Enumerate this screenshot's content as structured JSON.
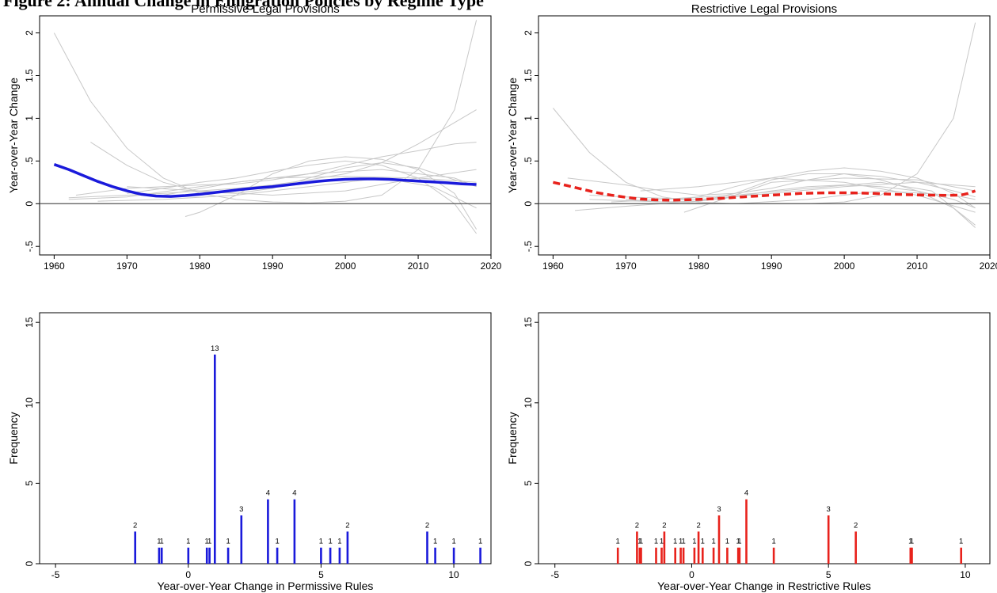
{
  "figure_title": "Figure 2: Annual Change in Emigration Policies by Regime Type",
  "chart_data": [
    {
      "id": "permissive-trend",
      "type": "line",
      "title": "Permissive Legal Provisions",
      "xlabel": "",
      "ylabel": "Year-over-Year Change",
      "xlim": [
        1958,
        2020
      ],
      "ylim": [
        -0.6,
        2.2
      ],
      "xticks": [
        1960,
        1970,
        1980,
        1990,
        2000,
        2010,
        2020
      ],
      "yticks": [
        -0.5,
        0,
        0.5,
        1,
        1.5,
        2
      ],
      "ytick_labels": [
        "-.5",
        "0",
        ".5",
        "1",
        "1.5",
        "2"
      ],
      "grid": false,
      "reference_line": 0,
      "main_color": "#1a1adb",
      "main_style": "solid",
      "main_series": {
        "x": [
          1960,
          1962,
          1964,
          1966,
          1968,
          1970,
          1972,
          1974,
          1976,
          1978,
          1980,
          1982,
          1984,
          1986,
          1988,
          1990,
          1992,
          1994,
          1996,
          1998,
          2000,
          2002,
          2004,
          2006,
          2008,
          2010,
          2012,
          2014,
          2016,
          2018
        ],
        "y": [
          0.46,
          0.4,
          0.33,
          0.26,
          0.2,
          0.15,
          0.11,
          0.09,
          0.085,
          0.095,
          0.11,
          0.13,
          0.15,
          0.17,
          0.185,
          0.2,
          0.22,
          0.24,
          0.26,
          0.275,
          0.285,
          0.29,
          0.29,
          0.285,
          0.275,
          0.265,
          0.255,
          0.245,
          0.232,
          0.225
        ]
      },
      "thin_series": [
        {
          "x": [
            1960,
            1965,
            1970,
            1975,
            1980,
            1985,
            1990,
            1995,
            2000,
            2005,
            2010,
            2015,
            2018
          ],
          "y": [
            2.0,
            1.2,
            0.65,
            0.3,
            0.12,
            0.05,
            0.02,
            0.01,
            0.03,
            0.1,
            0.4,
            1.1,
            2.15
          ]
        },
        {
          "x": [
            1965,
            1970,
            1975,
            1980,
            1985,
            1990,
            1995,
            2000,
            2005,
            2010,
            2015,
            2018
          ],
          "y": [
            0.72,
            0.45,
            0.25,
            0.14,
            0.12,
            0.18,
            0.3,
            0.42,
            0.48,
            0.42,
            0.28,
            0.2
          ]
        },
        {
          "x": [
            1962,
            1970,
            1975,
            1980,
            1985,
            1990,
            1995,
            2000,
            2005,
            2010,
            2015,
            2018
          ],
          "y": [
            0.07,
            0.1,
            0.12,
            0.15,
            0.18,
            0.22,
            0.28,
            0.35,
            0.48,
            0.7,
            0.95,
            1.1
          ]
        },
        {
          "x": [
            1963,
            1970,
            1975,
            1980,
            1985,
            1990,
            1995,
            2000,
            2005,
            2010,
            2015,
            2018
          ],
          "y": [
            0.1,
            0.18,
            0.2,
            0.22,
            0.23,
            0.28,
            0.35,
            0.45,
            0.55,
            0.62,
            0.7,
            0.72
          ]
        },
        {
          "x": [
            1978,
            1980,
            1985,
            1990,
            1995,
            2000,
            2005,
            2010,
            2015,
            2018
          ],
          "y": [
            -0.15,
            -0.1,
            0.1,
            0.35,
            0.5,
            0.55,
            0.52,
            0.4,
            0.12,
            -0.3
          ]
        },
        {
          "x": [
            1970,
            1975,
            1980,
            1985,
            1990,
            1995,
            2000,
            2005,
            2010,
            2015,
            2018
          ],
          "y": [
            0.12,
            0.18,
            0.25,
            0.3,
            0.38,
            0.45,
            0.5,
            0.45,
            0.3,
            0.0,
            -0.35
          ]
        },
        {
          "x": [
            1962,
            1970,
            1980,
            1990,
            2000,
            2010,
            2018
          ],
          "y": [
            0.05,
            0.08,
            0.2,
            0.3,
            0.32,
            0.3,
            0.25
          ]
        },
        {
          "x": [
            1966,
            1975,
            1985,
            1995,
            2005,
            2012,
            2018
          ],
          "y": [
            0.03,
            0.05,
            0.1,
            0.2,
            0.3,
            0.2,
            -0.05
          ]
        },
        {
          "x": [
            1970,
            1980,
            1990,
            2000,
            2010,
            2018
          ],
          "y": [
            0.2,
            0.15,
            0.1,
            0.15,
            0.3,
            0.4
          ]
        },
        {
          "x": [
            1975,
            1985,
            1995,
            2005,
            2015,
            2018
          ],
          "y": [
            0.1,
            0.25,
            0.35,
            0.4,
            0.3,
            0.2
          ]
        }
      ]
    },
    {
      "id": "restrictive-trend",
      "type": "line",
      "title": "Restrictive Legal Provisions",
      "xlabel": "",
      "ylabel": "Year-over-Year Change",
      "xlim": [
        1958,
        2020
      ],
      "ylim": [
        -0.6,
        2.2
      ],
      "xticks": [
        1960,
        1970,
        1980,
        1990,
        2000,
        2010,
        2020
      ],
      "yticks": [
        -0.5,
        0,
        0.5,
        1,
        1.5,
        2
      ],
      "ytick_labels": [
        "-.5",
        "0",
        ".5",
        "1",
        "1.5",
        "2"
      ],
      "grid": false,
      "reference_line": 0,
      "main_color": "#e8221c",
      "main_style": "dashed",
      "main_series": {
        "x": [
          1960,
          1962,
          1964,
          1966,
          1968,
          1970,
          1972,
          1974,
          1976,
          1978,
          1980,
          1982,
          1984,
          1986,
          1988,
          1990,
          1992,
          1994,
          1996,
          1998,
          2000,
          2002,
          2004,
          2006,
          2008,
          2010,
          2012,
          2014,
          2016,
          2017,
          2018
        ],
        "y": [
          0.25,
          0.21,
          0.17,
          0.13,
          0.1,
          0.075,
          0.055,
          0.045,
          0.042,
          0.045,
          0.05,
          0.058,
          0.068,
          0.08,
          0.09,
          0.1,
          0.11,
          0.12,
          0.125,
          0.128,
          0.128,
          0.125,
          0.12,
          0.113,
          0.107,
          0.103,
          0.1,
          0.098,
          0.1,
          0.12,
          0.15
        ]
      },
      "thin_series": [
        {
          "x": [
            1960,
            1965,
            1970,
            1975,
            1980,
            1985,
            1990,
            1995,
            2000,
            2005,
            2010,
            2015,
            2018
          ],
          "y": [
            1.12,
            0.6,
            0.25,
            0.08,
            0.02,
            0.0,
            0.0,
            0.0,
            0.02,
            0.1,
            0.35,
            1.0,
            2.12
          ]
        },
        {
          "x": [
            1962,
            1970,
            1975,
            1980,
            1985,
            1990,
            1995,
            2000,
            2005,
            2010,
            2015,
            2018
          ],
          "y": [
            0.3,
            0.22,
            0.15,
            0.1,
            0.12,
            0.18,
            0.28,
            0.35,
            0.32,
            0.25,
            0.15,
            0.08
          ]
        },
        {
          "x": [
            1963,
            1970,
            1975,
            1980,
            1985,
            1990,
            1995,
            2000,
            2005,
            2010,
            2015,
            2018
          ],
          "y": [
            -0.08,
            -0.03,
            0.0,
            0.03,
            0.08,
            0.15,
            0.2,
            0.22,
            0.2,
            0.15,
            0.05,
            -0.05
          ]
        },
        {
          "x": [
            1970,
            1975,
            1980,
            1985,
            1990,
            1995,
            2000,
            2005,
            2010,
            2015,
            2018
          ],
          "y": [
            0.05,
            0.02,
            0.03,
            0.12,
            0.28,
            0.35,
            0.35,
            0.28,
            0.15,
            -0.05,
            -0.28
          ]
        },
        {
          "x": [
            1975,
            1980,
            1985,
            1990,
            1995,
            2000,
            2005,
            2010,
            2015,
            2018
          ],
          "y": [
            0.05,
            0.08,
            0.2,
            0.3,
            0.38,
            0.42,
            0.38,
            0.3,
            0.12,
            -0.05
          ]
        },
        {
          "x": [
            1965,
            1970,
            1980,
            1990,
            2000,
            2010,
            2018
          ],
          "y": [
            0.1,
            0.08,
            0.05,
            0.12,
            0.2,
            0.25,
            0.2
          ]
        },
        {
          "x": [
            1968,
            1975,
            1985,
            1995,
            2005,
            2012,
            2018
          ],
          "y": [
            0.02,
            0.05,
            0.1,
            0.18,
            0.25,
            0.15,
            -0.25
          ]
        },
        {
          "x": [
            1978,
            1985,
            1990,
            2000,
            2010,
            2018
          ],
          "y": [
            -0.1,
            0.1,
            0.25,
            0.3,
            0.28,
            0.15
          ]
        },
        {
          "x": [
            1972,
            1980,
            1990,
            2000,
            2010,
            2018
          ],
          "y": [
            0.15,
            0.2,
            0.3,
            0.25,
            0.1,
            -0.1
          ]
        },
        {
          "x": [
            1965,
            1975,
            1985,
            1995,
            2005,
            2015,
            2018
          ],
          "y": [
            0.05,
            0.02,
            0.0,
            0.05,
            0.15,
            0.1,
            0.05
          ]
        }
      ]
    },
    {
      "id": "permissive-frequency",
      "type": "bar",
      "title": "",
      "xlabel": "Year-over-Year Change in Permissive Rules",
      "ylabel": "Frequency",
      "xlim": [
        -5.6,
        11.4
      ],
      "ylim": [
        0,
        15.6
      ],
      "xticks": [
        -5,
        0,
        5,
        10
      ],
      "yticks": [
        0,
        5,
        10,
        15
      ],
      "grid": false,
      "color": "#1a1adb",
      "x": [
        -2,
        -1.1,
        -1,
        0,
        0.7,
        0.8,
        1,
        1.5,
        2,
        3,
        3.35,
        4,
        5,
        5.35,
        5.7,
        6,
        9,
        9.3,
        10,
        11
      ],
      "values": [
        2,
        1,
        1,
        1,
        1,
        1,
        13,
        1,
        3,
        4,
        1,
        4,
        1,
        1,
        1,
        2,
        2,
        1,
        1,
        1
      ],
      "labels": [
        "2",
        "1",
        "1",
        "1",
        "1",
        "1",
        "13",
        "1",
        "3",
        "4",
        "1",
        "4",
        "1",
        "1",
        "1",
        "2",
        "2",
        "1",
        "1",
        "1"
      ]
    },
    {
      "id": "restrictive-frequency",
      "type": "bar",
      "title": "",
      "xlabel": "Year-over-Year Change in Restrictive Rules",
      "ylabel": "Frequency",
      "xlim": [
        -5.6,
        10.9
      ],
      "ylim": [
        0,
        15.6
      ],
      "xticks": [
        -5,
        0,
        5,
        10
      ],
      "yticks": [
        0,
        5,
        10,
        15
      ],
      "grid": false,
      "color": "#e8221c",
      "x": [
        -2.7,
        -2,
        -1.9,
        -1.85,
        -1.3,
        -1.1,
        -1,
        -0.6,
        -0.4,
        -0.3,
        0.1,
        0.25,
        0.4,
        0.8,
        1,
        1.3,
        1.7,
        1.75,
        2,
        3,
        5,
        6,
        8,
        8.05,
        9.85
      ],
      "values": [
        1,
        2,
        1,
        1,
        1,
        1,
        2,
        1,
        1,
        1,
        1,
        2,
        1,
        1,
        3,
        1,
        1,
        1,
        4,
        1,
        3,
        2,
        1,
        1,
        1
      ],
      "labels": [
        "1",
        "2",
        "1",
        "1",
        "1",
        "1",
        "2",
        "1",
        "1",
        "1",
        "1",
        "2",
        "1",
        "1",
        "3",
        "1",
        "1",
        "1",
        "4",
        "1",
        "3",
        "2",
        "1",
        "1",
        "1"
      ]
    }
  ]
}
